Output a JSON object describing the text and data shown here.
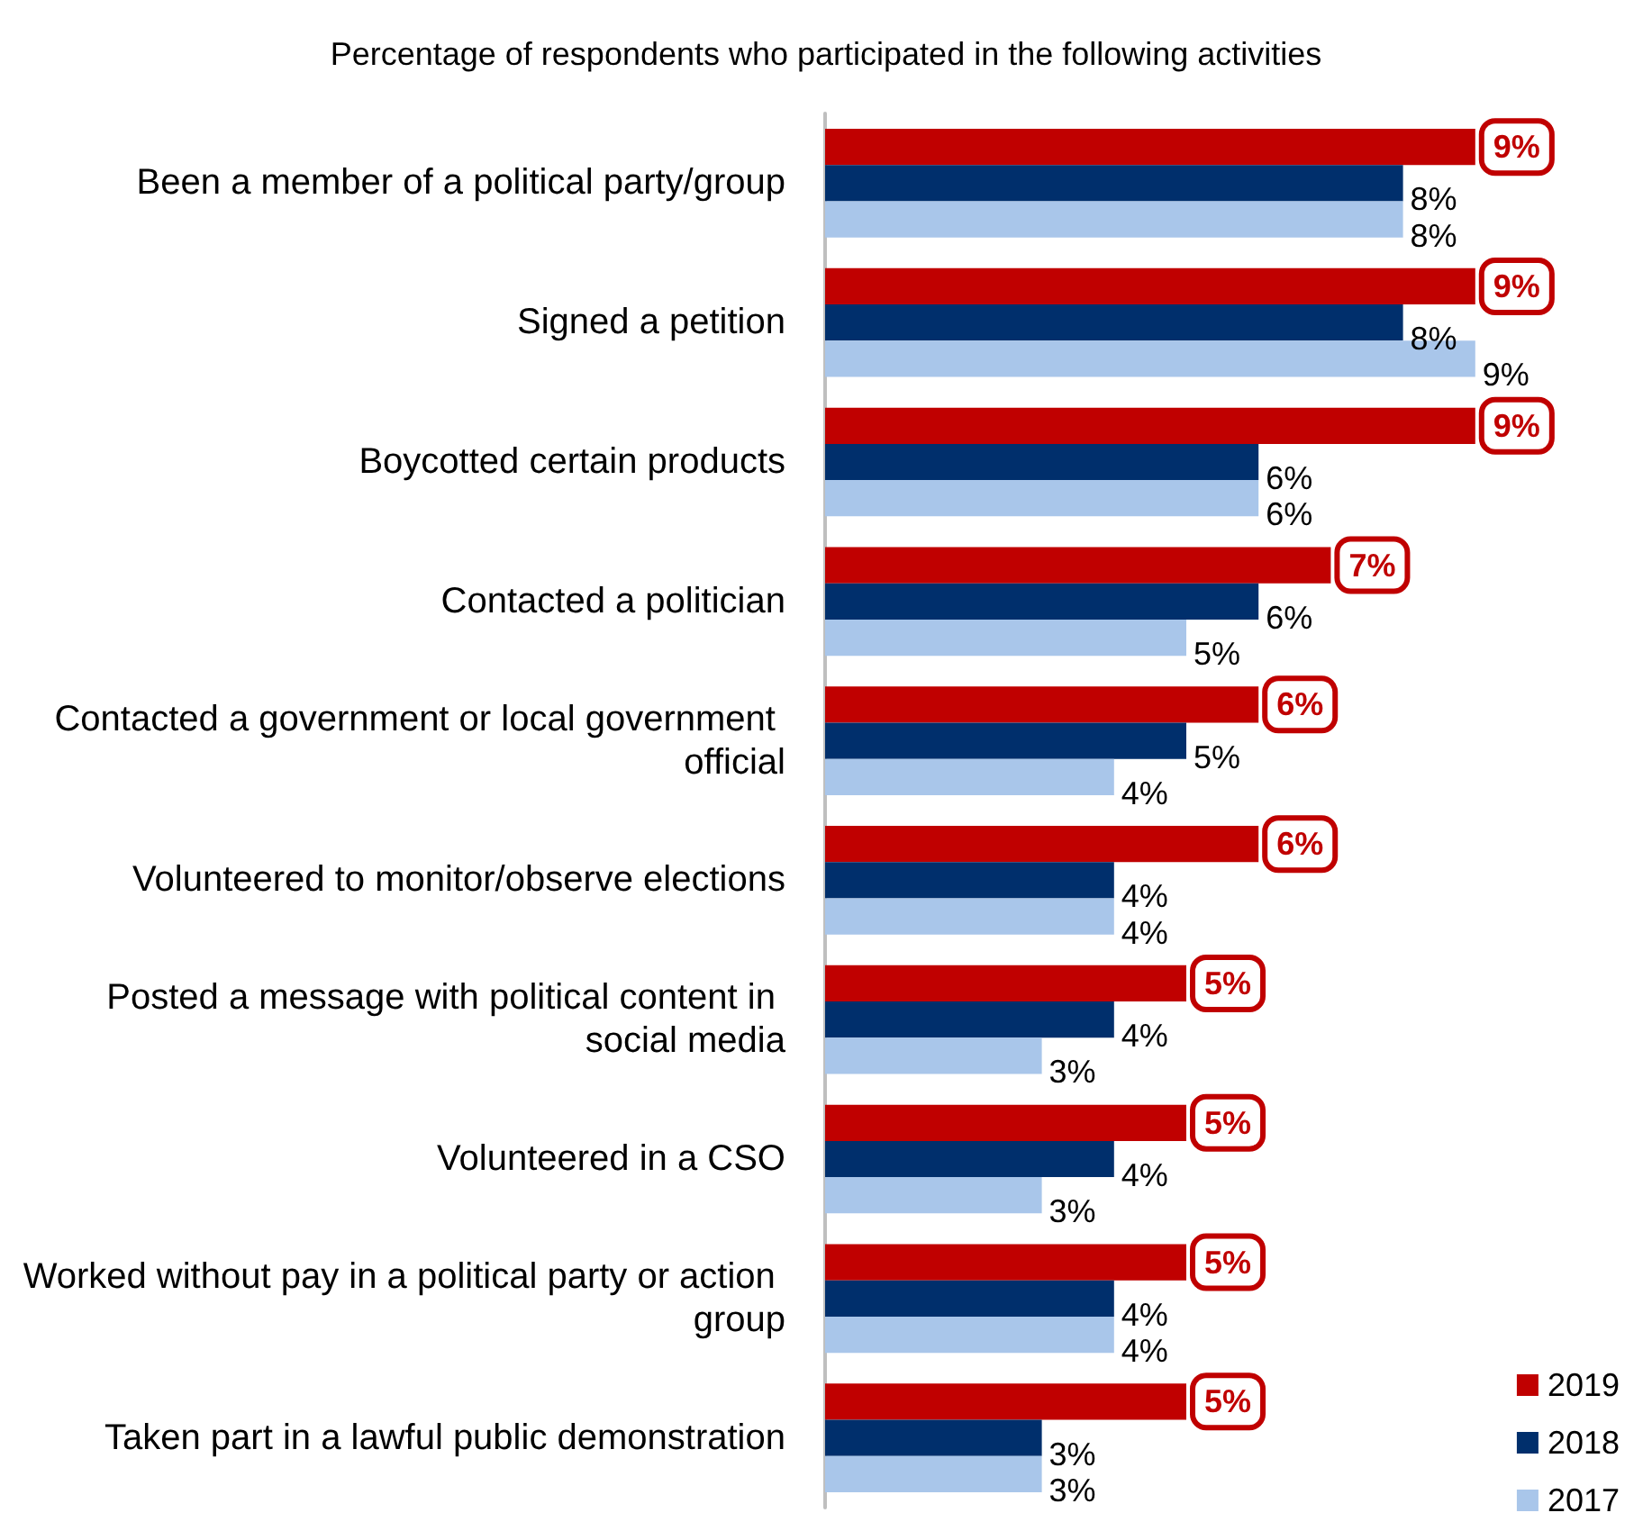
{
  "chart_data": {
    "type": "bar",
    "orientation": "horizontal",
    "title": "Percentage of respondents who participated in the following activities",
    "categories": [
      "Been a member of a political party/group",
      "Signed a petition",
      "Boycotted certain products",
      "Contacted a politician",
      "Contacted a government or local government official",
      "Volunteered to monitor/observe elections",
      "Posted a message with political content in social media",
      "Volunteered in a CSO",
      "Worked without pay in a political party or action group",
      "Taken part in a lawful public demonstration"
    ],
    "series": [
      {
        "name": "2019",
        "color": "#c00000",
        "values": [
          9,
          9,
          9,
          7,
          6,
          6,
          5,
          5,
          5,
          5
        ],
        "value_labels": [
          "9%",
          "9%",
          "9%",
          "7%",
          "6%",
          "6%",
          "5%",
          "5%",
          "5%",
          "5%"
        ]
      },
      {
        "name": "2018",
        "color": "#002f6c",
        "values": [
          8,
          8,
          6,
          6,
          5,
          4,
          4,
          4,
          4,
          3
        ],
        "value_labels": [
          "8%",
          "8%",
          "6%",
          "6%",
          "5%",
          "4%",
          "4%",
          "4%",
          "4%",
          "3%"
        ]
      },
      {
        "name": "2017",
        "color": "#a9c6ea",
        "values": [
          8,
          9,
          6,
          5,
          4,
          4,
          3,
          3,
          4,
          3
        ],
        "value_labels": [
          "8%",
          "9%",
          "6%",
          "5%",
          "4%",
          "4%",
          "3%",
          "3%",
          "4%",
          "3%"
        ]
      }
    ],
    "legend": "bottom right",
    "grid": false
  }
}
